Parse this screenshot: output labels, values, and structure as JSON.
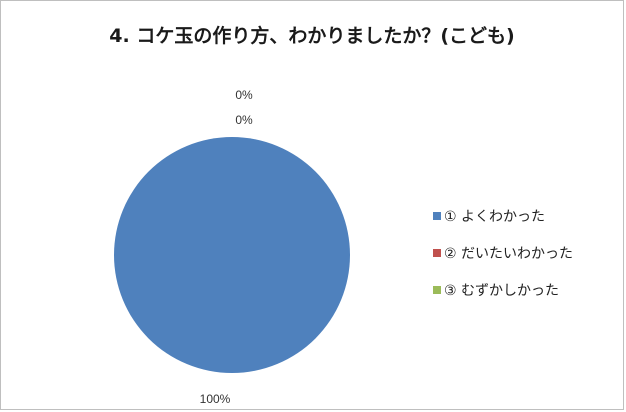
{
  "chart_data": {
    "type": "pie",
    "title": "4. コケ玉の作り方、わかりましたか？(こども)",
    "categories": [
      "① よくわかった",
      "② だいたいわかった",
      "③ むずかしかった"
    ],
    "values": [
      100,
      0,
      0
    ],
    "unit": "%",
    "data_labels": [
      "100%",
      "0%",
      "0%"
    ],
    "colors": [
      "#4f81bd",
      "#c0504d",
      "#9bbb59"
    ],
    "legend": {
      "position": "right",
      "entries": [
        "① よくわかった",
        "② だいたいわかった",
        "③ むずかしかった"
      ]
    }
  }
}
